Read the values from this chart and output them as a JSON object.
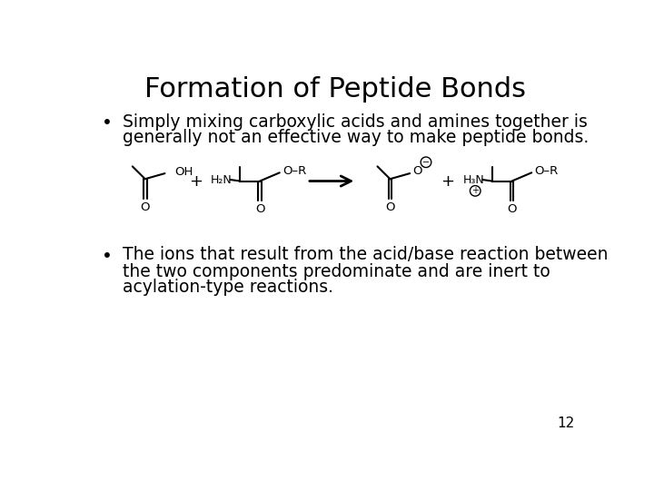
{
  "title": "Formation of Peptide Bonds",
  "title_fontsize": 22,
  "bg_color": "#ffffff",
  "text_color": "#000000",
  "bullet1_line1": "Simply mixing carboxylic acids and amines together is",
  "bullet1_line2": "generally not an effective way to make peptide bonds.",
  "bullet2_line1": "The ions that result from the acid/base reaction between",
  "bullet2_line2": "the two components predominate and are inert to",
  "bullet2_line3": "acylation-type reactions.",
  "page_num": "12",
  "body_fontsize": 13.5,
  "chem_fontsize": 9.5,
  "label_fontsize": 9.0
}
